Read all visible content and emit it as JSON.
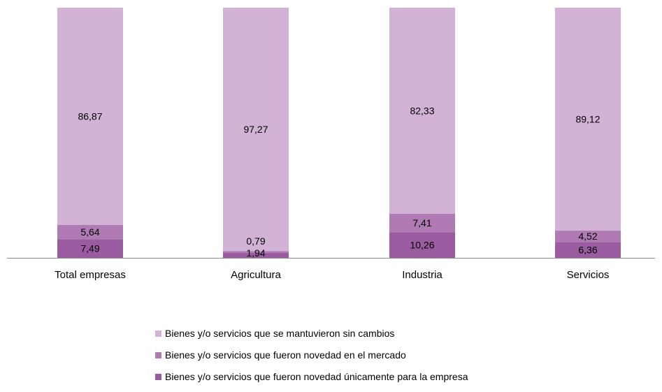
{
  "chart_data": {
    "type": "bar",
    "stacked": true,
    "categories": [
      "Total empresas",
      "Agricultura",
      "Industria",
      "Servicios"
    ],
    "series": [
      {
        "name": "Bienes y/o servicios que fueron novedad únicamente para la empresa",
        "values": [
          7.49,
          1.94,
          10.26,
          6.36
        ],
        "labels": [
          "7,49",
          "1,94",
          "10,26",
          "6,36"
        ],
        "color": "#9A5BA0"
      },
      {
        "name": "Bienes y/o servicios que fueron novedad en el mercado",
        "values": [
          5.64,
          0.79,
          7.41,
          4.52
        ],
        "labels": [
          "5,64",
          "0,79",
          "7,41",
          "4,52"
        ],
        "color": "#B07BB5"
      },
      {
        "name": "Bienes y/o servicios que se mantuvieron sin cambios",
        "values": [
          86.87,
          97.27,
          82.33,
          89.12
        ],
        "labels": [
          "86,87",
          "97,27",
          "82,33",
          "89,12"
        ],
        "color": "#D2B2D5"
      }
    ],
    "ylim": [
      0,
      100
    ],
    "grid": false,
    "legend_position": "bottom"
  }
}
